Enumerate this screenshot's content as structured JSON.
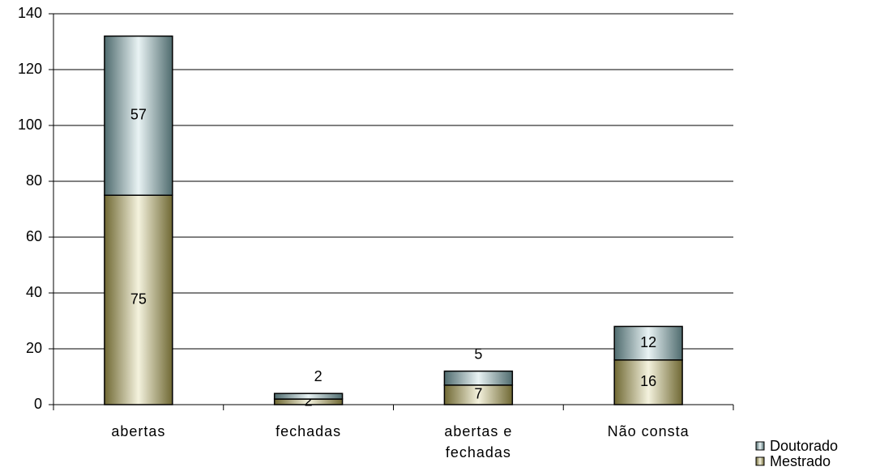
{
  "chart_data": {
    "type": "bar",
    "stacked": true,
    "categories": [
      "abertas",
      "fechadas",
      "abertas e fechadas",
      "Não consta"
    ],
    "series": [
      {
        "name": "Mestrado",
        "color": "#c9bd5c",
        "values": [
          75,
          2,
          7,
          16
        ]
      },
      {
        "name": "Doutorado",
        "color": "#8fc3c8",
        "values": [
          57,
          2,
          5,
          12
        ]
      }
    ],
    "ylim": [
      0,
      140
    ],
    "yticks": [
      0,
      20,
      40,
      60,
      80,
      100,
      120,
      140
    ],
    "grid": true,
    "legend": "right"
  }
}
